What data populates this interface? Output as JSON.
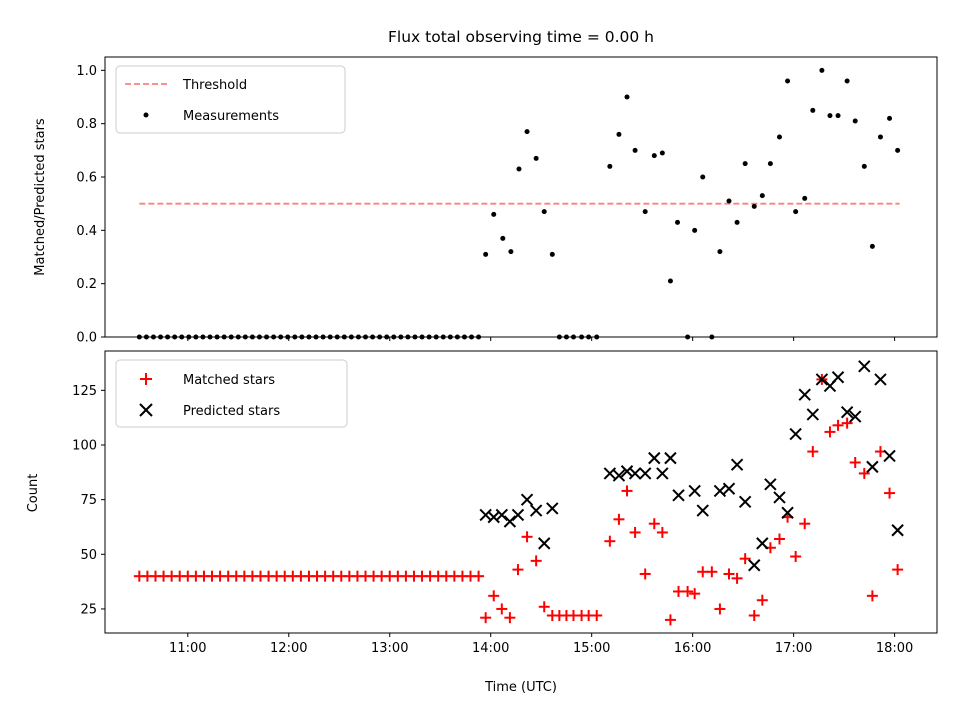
{
  "chart_data": [
    {
      "type": "scatter",
      "title": "Flux total observing time = 0.00 h",
      "xlabel": "",
      "ylabel": "Matched/Predicted stars",
      "xlim": [
        10.18,
        18.42
      ],
      "ylim": [
        0.0,
        1.05
      ],
      "yticks": [
        0.0,
        0.2,
        0.4,
        0.6,
        0.8,
        1.0
      ],
      "ytick_labels": [
        "0.0",
        "0.2",
        "0.4",
        "0.6",
        "0.8",
        "1.0"
      ],
      "xticks": [
        11,
        12,
        13,
        14,
        15,
        16,
        17,
        18
      ],
      "xtick_labels": [
        "",
        "",
        "",
        "",
        "",
        "",
        "",
        ""
      ],
      "legend": {
        "position": "upper-left",
        "entries": [
          {
            "label": "Threshold",
            "style": "dashed-line",
            "color": "#ff7f7f"
          },
          {
            "label": "Measurements",
            "style": "dot",
            "color": "#000000"
          }
        ]
      },
      "threshold": {
        "y": 0.5,
        "x_start": 10.52,
        "x_end": 18.05
      },
      "series": [
        {
          "name": "Measurements",
          "marker": "dot",
          "color": "#000000",
          "x": [
            10.52,
            10.59,
            10.66,
            10.73,
            10.8,
            10.87,
            10.94,
            11.01,
            11.08,
            11.15,
            11.22,
            11.29,
            11.36,
            11.43,
            11.5,
            11.57,
            11.64,
            11.71,
            11.78,
            11.85,
            11.92,
            11.99,
            12.06,
            12.13,
            12.2,
            12.27,
            12.34,
            12.41,
            12.48,
            12.55,
            12.62,
            12.69,
            12.76,
            12.83,
            12.9,
            12.97,
            13.04,
            13.11,
            13.18,
            13.25,
            13.32,
            13.39,
            13.46,
            13.53,
            13.6,
            13.67,
            13.74,
            13.81,
            13.88,
            13.95,
            14.03,
            14.12,
            14.2,
            14.28,
            14.36,
            14.45,
            14.53,
            14.61,
            14.68,
            14.75,
            14.82,
            14.9,
            14.97,
            15.05,
            15.18,
            15.27,
            15.35,
            15.43,
            15.53,
            15.62,
            15.7,
            15.78,
            15.85,
            15.95,
            16.02,
            16.1,
            16.19,
            16.27,
            16.36,
            16.44,
            16.52,
            16.61,
            16.69,
            16.77,
            16.86,
            16.94,
            17.02,
            17.11,
            17.19,
            17.28,
            17.36,
            17.44,
            17.53,
            17.61,
            17.7,
            17.78,
            17.86,
            17.95,
            18.03
          ],
          "y": [
            0.0,
            0.0,
            0.0,
            0.0,
            0.0,
            0.0,
            0.0,
            0.0,
            0.0,
            0.0,
            0.0,
            0.0,
            0.0,
            0.0,
            0.0,
            0.0,
            0.0,
            0.0,
            0.0,
            0.0,
            0.0,
            0.0,
            0.0,
            0.0,
            0.0,
            0.0,
            0.0,
            0.0,
            0.0,
            0.0,
            0.0,
            0.0,
            0.0,
            0.0,
            0.0,
            0.0,
            0.0,
            0.0,
            0.0,
            0.0,
            0.0,
            0.0,
            0.0,
            0.0,
            0.0,
            0.0,
            0.0,
            0.0,
            0.0,
            0.31,
            0.46,
            0.37,
            0.32,
            0.63,
            0.77,
            0.67,
            0.47,
            0.31,
            0.0,
            0.0,
            0.0,
            0.0,
            0.0,
            0.0,
            0.64,
            0.76,
            0.9,
            0.7,
            0.47,
            0.68,
            0.69,
            0.21,
            0.43,
            0.0,
            0.4,
            0.6,
            0.0,
            0.32,
            0.51,
            0.43,
            0.65,
            0.49,
            0.53,
            0.65,
            0.75,
            0.96,
            0.47,
            0.52,
            0.85,
            1.0,
            0.83,
            0.83,
            0.96,
            0.81,
            0.64,
            0.34,
            0.75,
            0.82,
            0.7
          ]
        }
      ]
    },
    {
      "type": "scatter",
      "title": "",
      "xlabel": "Time (UTC)",
      "ylabel": "Count",
      "xlim": [
        10.18,
        18.42
      ],
      "ylim": [
        14,
        143
      ],
      "yticks": [
        25,
        50,
        75,
        100,
        125
      ],
      "ytick_labels": [
        "25",
        "50",
        "75",
        "100",
        "125"
      ],
      "xticks": [
        11,
        12,
        13,
        14,
        15,
        16,
        17,
        18
      ],
      "xtick_labels": [
        "11:00",
        "12:00",
        "13:00",
        "14:00",
        "15:00",
        "16:00",
        "17:00",
        "18:00"
      ],
      "legend": {
        "position": "upper-left",
        "entries": [
          {
            "label": "Matched stars",
            "style": "plus",
            "color": "#ff0000"
          },
          {
            "label": "Predicted stars",
            "style": "x",
            "color": "#000000"
          }
        ]
      },
      "series": [
        {
          "name": "Matched stars",
          "marker": "plus",
          "color": "#ff0000",
          "x": [
            10.52,
            10.6,
            10.68,
            10.76,
            10.84,
            10.92,
            11.0,
            11.08,
            11.16,
            11.24,
            11.32,
            11.4,
            11.48,
            11.56,
            11.64,
            11.72,
            11.8,
            11.88,
            11.96,
            12.04,
            12.12,
            12.2,
            12.28,
            12.36,
            12.44,
            12.52,
            12.6,
            12.68,
            12.76,
            12.84,
            12.92,
            13.0,
            13.08,
            13.16,
            13.24,
            13.32,
            13.4,
            13.48,
            13.56,
            13.64,
            13.72,
            13.8,
            13.88,
            13.95,
            14.03,
            14.11,
            14.19,
            14.27,
            14.36,
            14.45,
            14.53,
            14.61,
            14.68,
            14.75,
            14.82,
            14.9,
            14.97,
            15.05,
            15.18,
            15.27,
            15.35,
            15.43,
            15.53,
            15.62,
            15.7,
            15.78,
            15.86,
            15.95,
            16.02,
            16.1,
            16.19,
            16.27,
            16.36,
            16.44,
            16.52,
            16.61,
            16.69,
            16.77,
            16.86,
            16.94,
            17.02,
            17.11,
            17.19,
            17.28,
            17.36,
            17.44,
            17.53,
            17.61,
            17.7,
            17.78,
            17.86,
            17.95,
            18.03
          ],
          "y": [
            40,
            40,
            40,
            40,
            40,
            40,
            40,
            40,
            40,
            40,
            40,
            40,
            40,
            40,
            40,
            40,
            40,
            40,
            40,
            40,
            40,
            40,
            40,
            40,
            40,
            40,
            40,
            40,
            40,
            40,
            40,
            40,
            40,
            40,
            40,
            40,
            40,
            40,
            40,
            40,
            40,
            40,
            40,
            21,
            31,
            25,
            21,
            43,
            58,
            47,
            26,
            22,
            22,
            22,
            22,
            22,
            22,
            22,
            56,
            66,
            79,
            60,
            41,
            64,
            60,
            20,
            33,
            33,
            32,
            42,
            42,
            25,
            41,
            39,
            48,
            22,
            29,
            53,
            57,
            67,
            49,
            64,
            97,
            130,
            106,
            109,
            110,
            92,
            87,
            31,
            97,
            78,
            43
          ]
        },
        {
          "name": "Predicted stars",
          "marker": "x",
          "color": "#000000",
          "x": [
            13.95,
            14.03,
            14.11,
            14.19,
            14.27,
            14.36,
            14.45,
            14.53,
            14.61,
            15.18,
            15.27,
            15.35,
            15.43,
            15.53,
            15.62,
            15.7,
            15.78,
            15.86,
            16.02,
            16.1,
            16.27,
            16.36,
            16.44,
            16.52,
            16.61,
            16.69,
            16.77,
            16.86,
            16.94,
            17.02,
            17.11,
            17.19,
            17.28,
            17.36,
            17.44,
            17.53,
            17.61,
            17.7,
            17.78,
            17.86,
            17.95,
            18.03
          ],
          "y": [
            68,
            67,
            68,
            65,
            68,
            75,
            70,
            55,
            71,
            87,
            86,
            88,
            87,
            87,
            94,
            87,
            94,
            77,
            79,
            70,
            79,
            80,
            91,
            74,
            45,
            55,
            82,
            76,
            69,
            105,
            123,
            114,
            130,
            127,
            131,
            115,
            113,
            136,
            90,
            130,
            95,
            61
          ]
        }
      ]
    }
  ]
}
